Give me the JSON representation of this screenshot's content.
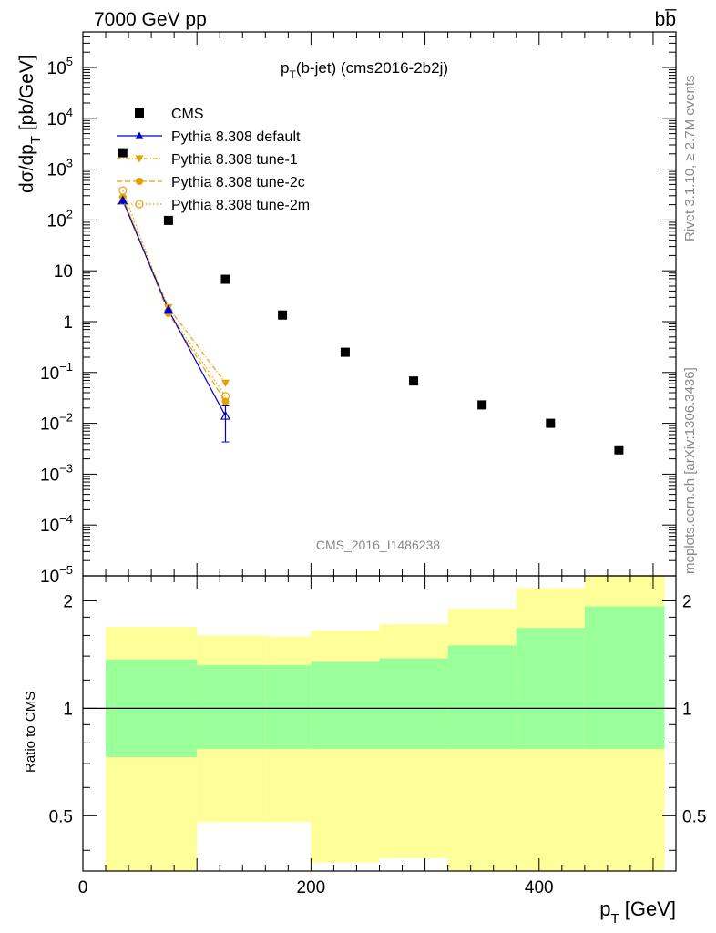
{
  "header": {
    "left": "7000 GeV pp",
    "right": "bb̅"
  },
  "side_labels": {
    "rivet": "Rivet 3.1.10, ≥ 2.7M events",
    "mcplots": "mcplots.cern.ch [arXiv:1306.3436]"
  },
  "watermark": "CMS_2016_I1486238",
  "colors": {
    "data": "#000000",
    "default": "#0000cc",
    "tunes": "#e8a000",
    "band_inner": "#99ff99",
    "band_outer": "#ffff99"
  },
  "chart_data": [
    {
      "type": "scatter",
      "title_main": "p",
      "title_sub": "T",
      "title_rest": "(b-jet) (cms2016-2b2j)",
      "ylabel_main": "dσ/dp",
      "ylabel_sub": "T",
      "ylabel_rest": " [pb/GeV]",
      "yscale": "log",
      "ylim": [
        1e-05,
        500000.0
      ],
      "xlim": [
        0,
        520
      ],
      "y_ticks": [
        {
          "v": 1e-05,
          "m": "10",
          "e": "−5"
        },
        {
          "v": 0.0001,
          "m": "10",
          "e": "−4"
        },
        {
          "v": 0.001,
          "m": "10",
          "e": "−3"
        },
        {
          "v": 0.01,
          "m": "10",
          "e": "−2"
        },
        {
          "v": 0.1,
          "m": "10",
          "e": "−1"
        },
        {
          "v": 1,
          "m": "1",
          "e": ""
        },
        {
          "v": 10,
          "m": "10",
          "e": ""
        },
        {
          "v": 100,
          "m": "10",
          "e": "2"
        },
        {
          "v": 1000,
          "m": "10",
          "e": "3"
        },
        {
          "v": 10000,
          "m": "10",
          "e": "4"
        },
        {
          "v": 100000,
          "m": "10",
          "e": "5"
        }
      ],
      "legend": [
        "CMS",
        "Pythia 8.308 default",
        "Pythia 8.308 tune-1",
        "Pythia 8.308 tune-2c",
        "Pythia 8.308 tune-2m"
      ],
      "series": [
        {
          "name": "CMS",
          "x": [
            35,
            75,
            125,
            175,
            230,
            290,
            350,
            410,
            470
          ],
          "y": [
            2100,
            98,
            6.8,
            1.35,
            0.25,
            0.068,
            0.023,
            0.01,
            0.003
          ]
        },
        {
          "name": "Pythia 8.308 default",
          "x": [
            35,
            75,
            125
          ],
          "y": [
            240,
            1.7,
            0.014
          ],
          "err_low": [
            0,
            0,
            0.0043
          ],
          "err_high": [
            0,
            0,
            0.022
          ]
        },
        {
          "name": "Pythia 8.308 tune-1",
          "x": [
            35,
            75,
            125
          ],
          "y": [
            260,
            1.9,
            0.062
          ]
        },
        {
          "name": "Pythia 8.308 tune-2c",
          "x": [
            35,
            75,
            125
          ],
          "y": [
            280,
            1.45,
            0.027
          ]
        },
        {
          "name": "Pythia 8.308 tune-2m",
          "x": [
            35,
            75,
            125
          ],
          "y": [
            380,
            1.6,
            0.034
          ]
        }
      ]
    },
    {
      "type": "area",
      "ylabel": "Ratio to CMS",
      "xlabel_main": "p",
      "xlabel_sub": "T",
      "xlabel_rest": " [GeV]",
      "yscale": "log",
      "ylim": [
        0.35,
        2.35
      ],
      "xlim": [
        0,
        520
      ],
      "x_ticks": [
        0,
        200,
        400
      ],
      "y_ticks": [
        0.5,
        1,
        2
      ],
      "bins": [
        [
          20,
          100
        ],
        [
          100,
          160
        ],
        [
          160,
          200
        ],
        [
          200,
          260
        ],
        [
          260,
          320
        ],
        [
          320,
          380
        ],
        [
          380,
          440
        ],
        [
          440,
          510
        ]
      ],
      "inner_band": {
        "low": [
          0.73,
          0.77,
          0.77,
          0.77,
          0.77,
          0.77,
          0.77,
          0.77
        ],
        "high": [
          1.37,
          1.32,
          1.32,
          1.35,
          1.38,
          1.5,
          1.68,
          1.93
        ]
      },
      "outer_band": {
        "low": [
          0.35,
          0.48,
          0.48,
          0.37,
          0.38,
          0.35,
          0.35,
          0.35
        ],
        "high": [
          1.69,
          1.6,
          1.59,
          1.65,
          1.72,
          1.9,
          2.17,
          2.35
        ]
      },
      "reference": 1
    }
  ]
}
